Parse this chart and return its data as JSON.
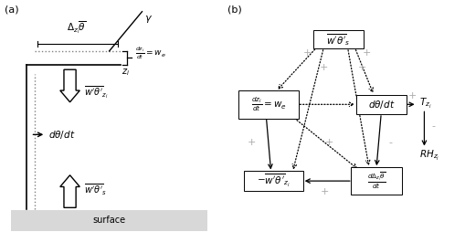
{
  "fig_width": 5.09,
  "fig_height": 2.54,
  "dpi": 100,
  "bg_color": "#ffffff",
  "gray_color": "#aaaaaa",
  "panel_a_label": "(a)",
  "panel_b_label": "(b)",
  "surface_color": "#d8d8d8",
  "arrow_gray": "#999999"
}
